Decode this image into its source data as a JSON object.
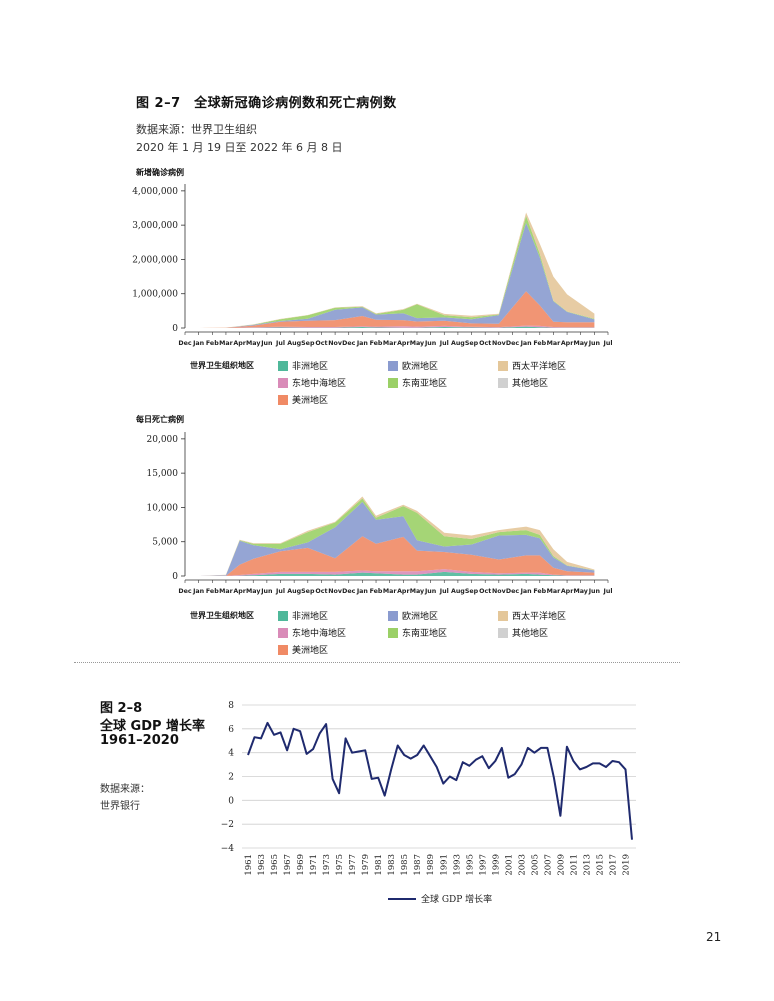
{
  "fig27": {
    "title": "图 2–7　全球新冠确诊病例数和死亡病例数",
    "source": "数据来源：世界卫生组织",
    "date_range": "2020 年 1 月 19 日至 2022 年 6 月 8 日",
    "legend_title": "世界卫生组织地区",
    "legend": [
      {
        "label": "非洲地区",
        "color": "#4fb89a"
      },
      {
        "label": "欧洲地区",
        "color": "#8a9bcf"
      },
      {
        "label": "西太平洋地区",
        "color": "#e4c79a"
      },
      {
        "label": "东地中海地区",
        "color": "#d98bb8"
      },
      {
        "label": "东南亚地区",
        "color": "#9bd067"
      },
      {
        "label": "其他地区",
        "color": "#d0d0d0"
      },
      {
        "label": "美洲地区",
        "color": "#f08a65"
      }
    ],
    "month_ticks": [
      "Dec",
      "Jan",
      "Feb",
      "Mar",
      "Apr",
      "May",
      "Jun",
      "Jul",
      "Aug",
      "Sep",
      "Oct",
      "Nov",
      "Dec",
      "Jan",
      "Feb",
      "Mar",
      "Apr",
      "May",
      "Jun",
      "Jul",
      "Aug",
      "Sep",
      "Oct",
      "Nov",
      "Dec",
      "Jan",
      "Feb",
      "Mar",
      "Apr",
      "May",
      "Jun",
      "Jul"
    ]
  },
  "chart_data": [
    {
      "type": "area",
      "title": "",
      "ylabel": "新增确诊病例",
      "ylim": [
        0,
        4200000
      ],
      "yticks": [
        0,
        1000000,
        2000000,
        3000000,
        4000000
      ],
      "ytick_labels": [
        "0",
        "1,000,000",
        "2,000,000",
        "3,000,000",
        "4,000,000"
      ],
      "x": [
        "2020-01",
        "2020-03",
        "2020-05",
        "2020-07",
        "2020-09",
        "2020-11",
        "2021-01",
        "2021-02",
        "2021-04",
        "2021-05",
        "2021-07",
        "2021-09",
        "2021-11",
        "2022-01",
        "2022-02",
        "2022-03",
        "2022-04",
        "2022-06"
      ],
      "series": [
        {
          "name": "非洲地区",
          "values": [
            0,
            0,
            5000,
            15000,
            10000,
            10000,
            30000,
            15000,
            10000,
            10000,
            30000,
            15000,
            10000,
            40000,
            20000,
            10000,
            10000,
            10000
          ]
        },
        {
          "name": "东地中海地区",
          "values": [
            0,
            0,
            15000,
            20000,
            20000,
            20000,
            20000,
            25000,
            40000,
            30000,
            30000,
            20000,
            15000,
            30000,
            40000,
            20000,
            10000,
            10000
          ]
        },
        {
          "name": "美洲地区",
          "values": [
            0,
            5000,
            50000,
            150000,
            180000,
            200000,
            300000,
            200000,
            180000,
            150000,
            150000,
            100000,
            100000,
            1000000,
            600000,
            150000,
            150000,
            150000
          ]
        },
        {
          "name": "欧洲地区",
          "values": [
            0,
            5000,
            20000,
            20000,
            60000,
            300000,
            250000,
            150000,
            200000,
            100000,
            100000,
            120000,
            250000,
            2000000,
            1400000,
            600000,
            300000,
            80000
          ]
        },
        {
          "name": "东南亚地区",
          "values": [
            0,
            0,
            10000,
            50000,
            100000,
            60000,
            20000,
            20000,
            100000,
            400000,
            60000,
            60000,
            20000,
            200000,
            100000,
            20000,
            10000,
            20000
          ]
        },
        {
          "name": "西太平洋地区",
          "values": [
            0,
            2000,
            5000,
            10000,
            10000,
            10000,
            20000,
            20000,
            20000,
            20000,
            40000,
            40000,
            20000,
            100000,
            300000,
            700000,
            500000,
            150000
          ]
        },
        {
          "name": "其他地区",
          "values": [
            0,
            0,
            0,
            0,
            0,
            0,
            0,
            0,
            0,
            0,
            0,
            0,
            0,
            0,
            0,
            0,
            0,
            0
          ]
        }
      ]
    },
    {
      "type": "area",
      "title": "",
      "ylabel": "每日死亡病例",
      "ylim": [
        0,
        21000
      ],
      "yticks": [
        0,
        5000,
        10000,
        15000,
        20000
      ],
      "ytick_labels": [
        "0",
        "5,000",
        "10,000",
        "15,000",
        "20,000"
      ],
      "x": [
        "2020-01",
        "2020-03",
        "2020-04",
        "2020-05",
        "2020-07",
        "2020-09",
        "2020-11",
        "2021-01",
        "2021-02",
        "2021-04",
        "2021-05",
        "2021-07",
        "2021-09",
        "2021-11",
        "2022-01",
        "2022-02",
        "2022-03",
        "2022-04",
        "2022-06"
      ],
      "series": [
        {
          "name": "非洲地区",
          "values": [
            0,
            0,
            50,
            100,
            300,
            300,
            200,
            500,
            400,
            200,
            200,
            600,
            300,
            200,
            300,
            200,
            100,
            50,
            50
          ]
        },
        {
          "name": "东地中海地区",
          "values": [
            0,
            20,
            100,
            200,
            300,
            300,
            400,
            300,
            300,
            500,
            500,
            400,
            300,
            200,
            200,
            300,
            100,
            50,
            50
          ]
        },
        {
          "name": "美洲地区",
          "values": [
            0,
            0,
            1500,
            2200,
            3000,
            3500,
            2000,
            5000,
            4000,
            5000,
            3000,
            2500,
            2500,
            2000,
            2500,
            2500,
            1000,
            600,
            400
          ]
        },
        {
          "name": "欧洲地区",
          "values": [
            0,
            100,
            3500,
            2000,
            300,
            800,
            4500,
            5000,
            3500,
            3000,
            1500,
            800,
            1500,
            3500,
            3000,
            2500,
            1500,
            800,
            300
          ]
        },
        {
          "name": "东南亚地区",
          "values": [
            0,
            0,
            50,
            200,
            800,
            1500,
            700,
            500,
            300,
            1500,
            4000,
            1500,
            800,
            500,
            700,
            500,
            200,
            50,
            50
          ]
        },
        {
          "name": "西太平洋地区",
          "values": [
            0,
            50,
            100,
            100,
            100,
            200,
            100,
            300,
            300,
            200,
            300,
            500,
            500,
            300,
            500,
            700,
            1000,
            500,
            100
          ]
        },
        {
          "name": "其他地区",
          "values": [
            0,
            0,
            0,
            0,
            0,
            0,
            0,
            0,
            0,
            0,
            0,
            0,
            0,
            0,
            0,
            0,
            0,
            0,
            0
          ]
        }
      ]
    },
    {
      "type": "line",
      "title": "全球 GDP 增长率 1961–2020",
      "xlabel": "",
      "ylabel": "",
      "ylim": [
        -4,
        8
      ],
      "yticks": [
        -4,
        -2,
        0,
        2,
        4,
        6,
        8
      ],
      "x": [
        1961,
        1962,
        1963,
        1964,
        1965,
        1966,
        1967,
        1968,
        1969,
        1970,
        1971,
        1972,
        1973,
        1974,
        1975,
        1976,
        1977,
        1978,
        1979,
        1980,
        1981,
        1982,
        1983,
        1984,
        1985,
        1986,
        1987,
        1988,
        1989,
        1990,
        1991,
        1992,
        1993,
        1994,
        1995,
        1996,
        1997,
        1998,
        1999,
        2000,
        2001,
        2002,
        2003,
        2004,
        2005,
        2006,
        2007,
        2008,
        2009,
        2010,
        2011,
        2012,
        2013,
        2014,
        2015,
        2016,
        2017,
        2018,
        2019,
        2020
      ],
      "xtick_labels": [
        "1961",
        "1963",
        "1965",
        "1967",
        "1969",
        "1971",
        "1973",
        "1975",
        "1977",
        "1979",
        "1981",
        "1983",
        "1985",
        "1987",
        "1989",
        "1991",
        "1993",
        "1995",
        "1997",
        "1999",
        "2001",
        "2003",
        "2005",
        "2007",
        "2009",
        "2011",
        "2013",
        "2015",
        "2017",
        "2019"
      ],
      "series": [
        {
          "name": "全球 GDP 增长率",
          "color": "#1f2a6e",
          "values": [
            3.8,
            5.3,
            5.2,
            6.5,
            5.5,
            5.7,
            4.2,
            6.0,
            5.8,
            3.9,
            4.3,
            5.6,
            6.4,
            1.8,
            0.6,
            5.2,
            4.0,
            4.1,
            4.2,
            1.8,
            1.9,
            0.4,
            2.6,
            4.6,
            3.8,
            3.5,
            3.8,
            4.6,
            3.7,
            2.8,
            1.4,
            2.0,
            1.7,
            3.2,
            2.9,
            3.4,
            3.7,
            2.7,
            3.3,
            4.4,
            1.9,
            2.2,
            3.0,
            4.4,
            4.0,
            4.4,
            4.4,
            1.9,
            -1.3,
            4.5,
            3.3,
            2.6,
            2.8,
            3.1,
            3.1,
            2.8,
            3.3,
            3.2,
            2.6,
            -3.3
          ]
        }
      ],
      "legend": "全球 GDP 增长率"
    }
  ],
  "fig28": {
    "num": "图 2–8",
    "title1": "全球 GDP 增长率",
    "title2": "1961–2020",
    "source1": "数据来源：",
    "source2": "世界银行"
  },
  "page_number": "21"
}
